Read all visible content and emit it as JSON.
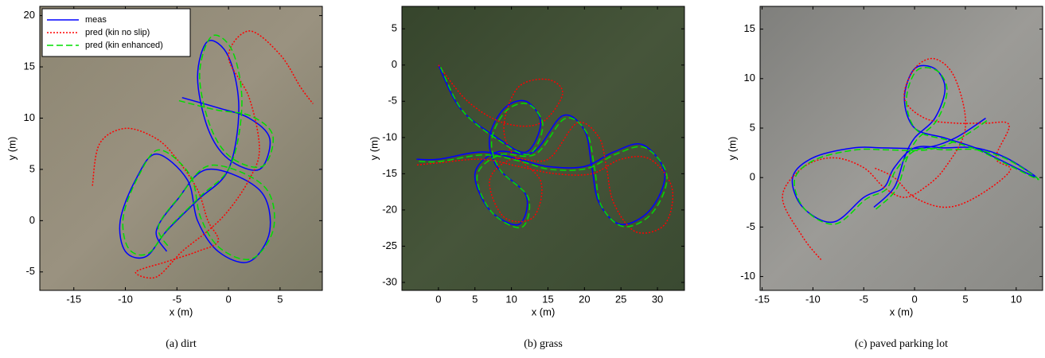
{
  "chart_data": [
    {
      "type": "line",
      "caption": "(a) dirt",
      "xlabel": "x (m)",
      "ylabel": "y (m)",
      "xlim": [
        -18.3,
        9.1
      ],
      "ylim": [
        -6.8,
        20.9
      ],
      "xticks": [
        -15,
        -10,
        -5,
        0,
        5
      ],
      "yticks": [
        -5,
        0,
        5,
        10,
        15,
        20
      ],
      "legend": "upper left",
      "series": [
        {
          "name": "meas",
          "color": "#0000ff",
          "style": "solid",
          "x": [
            -4.5,
            -1,
            2,
            4,
            3,
            0,
            -2,
            -3,
            -2,
            0,
            1,
            0,
            -3,
            -6,
            -8,
            -10,
            -10.5,
            -9,
            -7,
            -4,
            -3,
            -1,
            2,
            4,
            3,
            -2,
            -5,
            -7,
            -6
          ],
          "y": [
            12,
            11,
            10,
            8,
            5,
            6,
            9,
            14,
            17.5,
            16,
            11,
            5,
            2,
            -1,
            -3.5,
            -3,
            0,
            4,
            6.5,
            4,
            0,
            -3,
            -4,
            -1,
            3,
            5,
            2,
            -1,
            -3
          ]
        },
        {
          "name": "pred (kin no slip)",
          "color": "#ff0000",
          "style": "dotted",
          "x": [
            -13.2,
            -12.5,
            -10,
            -7,
            -5,
            -3,
            -2,
            -1,
            -3,
            -6,
            -9,
            -7,
            -4.5,
            -2,
            0,
            2,
            3,
            2,
            0,
            2,
            5,
            7,
            8.2
          ],
          "y": [
            3.4,
            7.5,
            9,
            8,
            6,
            3,
            0,
            -2,
            -3,
            -4,
            -5,
            -5.5,
            -3,
            -1,
            1,
            4,
            7,
            12,
            16,
            18.5,
            16.2,
            13,
            11.4
          ]
        },
        {
          "name": "pred (kin enhanced)",
          "color": "#00dd00",
          "style": "dashed",
          "x": [
            -4.8,
            -1.2,
            2.2,
            4.3,
            3.3,
            0.2,
            -1.8,
            -2.8,
            -1.6,
            0.4,
            1.3,
            0.2,
            -2.8,
            -5.8,
            -7.8,
            -9.7,
            -10.2,
            -8.7,
            -6.7,
            -3.7,
            -2.7,
            -0.8,
            2.3,
            4.4,
            3.4,
            -1.7,
            -4.7,
            -6.8,
            -5.7
          ],
          "y": [
            11.7,
            10.8,
            10.2,
            8.3,
            5.3,
            6.2,
            9.3,
            14.3,
            18,
            16.5,
            11.4,
            5.4,
            2.3,
            -0.7,
            -3.2,
            -2.7,
            0.4,
            4.4,
            6.9,
            4.4,
            0.3,
            -2.7,
            -3.7,
            -0.6,
            3.4,
            5.4,
            2.4,
            -0.6,
            -2.7
          ]
        }
      ]
    },
    {
      "type": "line",
      "caption": "(b) grass",
      "xlabel": "x (m)",
      "ylabel": "y (m)",
      "xlim": [
        -5,
        33.7
      ],
      "ylim": [
        -31.1,
        8.1
      ],
      "xticks": [
        0,
        5,
        10,
        15,
        20,
        25,
        30
      ],
      "yticks": [
        -30,
        -25,
        -20,
        -15,
        -10,
        -5,
        0,
        5
      ],
      "series": [
        {
          "color": "#0000ff",
          "style": "solid",
          "x": [
            0,
            3,
            8,
            12,
            14,
            12,
            9,
            7,
            8,
            12,
            11,
            7,
            5,
            8,
            13,
            17,
            20,
            21,
            22,
            25,
            29,
            31,
            28,
            24,
            20,
            15,
            11,
            6,
            0,
            -3
          ],
          "y": [
            0,
            -6,
            -10,
            -12,
            -8,
            -5,
            -6,
            -10,
            -14,
            -18,
            -22,
            -20,
            -15,
            -12,
            -12,
            -7,
            -9,
            -14,
            -19,
            -22,
            -20,
            -15,
            -11,
            -12,
            -14,
            -14,
            -13,
            -12,
            -13,
            -13
          ]
        },
        {
          "color": "#ff0000",
          "style": "dotted",
          "x": [
            0,
            4,
            9,
            14,
            17,
            15,
            11,
            9,
            10,
            14,
            13,
            9,
            7,
            10,
            15,
            19,
            22,
            23,
            24,
            27,
            31,
            32,
            29,
            25,
            21,
            16,
            11,
            6,
            0,
            -3
          ],
          "y": [
            0,
            -5,
            -8,
            -8,
            -4,
            -2,
            -3,
            -8,
            -12,
            -16,
            -21,
            -21,
            -16,
            -13,
            -13,
            -8,
            -10,
            -14,
            -19,
            -23,
            -22,
            -17,
            -13,
            -13,
            -15,
            -15,
            -14,
            -13,
            -13.5,
            -13.8
          ]
        },
        {
          "color": "#00dd00",
          "style": "dashed",
          "x": [
            0.3,
            3.3,
            8.3,
            12.4,
            14.3,
            12.3,
            9.3,
            7.3,
            8.4,
            12.3,
            11.4,
            7.3,
            5.3,
            8.4,
            13.3,
            17.3,
            20.3,
            21.4,
            22.3,
            25.4,
            29.3,
            31.3,
            28.3,
            24.3,
            20.3,
            15.3,
            11.3,
            6.3,
            0.3,
            -2.7
          ],
          "y": [
            -0.3,
            -6.3,
            -10.4,
            -12.3,
            -8.3,
            -5.4,
            -6.3,
            -10.3,
            -14.4,
            -18.3,
            -22.4,
            -20.3,
            -15.3,
            -12.4,
            -12.3,
            -7.4,
            -9.3,
            -14.3,
            -19.4,
            -22.3,
            -20.4,
            -15.3,
            -11.4,
            -12.3,
            -14.3,
            -14.4,
            -13.3,
            -12.4,
            -13.3,
            -13.3
          ]
        }
      ]
    },
    {
      "type": "line",
      "caption": "(c) paved parking lot",
      "xlabel": "x (m)",
      "ylabel": "y (m)",
      "xlim": [
        -15.2,
        12.6
      ],
      "ylim": [
        -11.4,
        17.3
      ],
      "xticks": [
        -15,
        -10,
        -5,
        0,
        5,
        10
      ],
      "yticks": [
        -10,
        -5,
        0,
        5,
        10,
        15
      ],
      "series": [
        {
          "color": "#0000ff",
          "style": "solid",
          "x": [
            -4,
            -2,
            -1,
            0,
            2,
            3,
            2,
            0,
            -1,
            0,
            3,
            6,
            8,
            12,
            9,
            6,
            3,
            0,
            -2,
            -3,
            -5,
            -8,
            -11,
            -12,
            -10,
            -6,
            -3,
            1,
            4,
            7
          ],
          "y": [
            -3,
            -1,
            2,
            4,
            6,
            9,
            11,
            11,
            8,
            5,
            4,
            3,
            2,
            0,
            2,
            3,
            3,
            3,
            1,
            -1,
            -2,
            -4.5,
            -3,
            0,
            2,
            3,
            3,
            3,
            4,
            6
          ]
        },
        {
          "color": "#ff0000",
          "style": "dotted",
          "x": [
            -9.2,
            -11,
            -13,
            -11,
            -8,
            -5,
            -3,
            -1,
            1,
            3,
            5,
            4,
            2,
            0,
            -1,
            1,
            4,
            7,
            9.3,
            8,
            9.4,
            6,
            3,
            0,
            -2,
            -4
          ],
          "y": [
            -8.3,
            -6,
            -2,
            1,
            2,
            1,
            -1,
            -2,
            -1,
            1,
            5,
            10,
            12,
            11,
            8,
            6,
            5.5,
            5.5,
            5.3,
            2,
            0.7,
            -2,
            -3,
            -2,
            0,
            1
          ]
        },
        {
          "color": "#00dd00",
          "style": "dashed",
          "x": [
            -3.8,
            -1.8,
            -0.8,
            0.2,
            2.2,
            3.2,
            2.2,
            0.2,
            -0.8,
            0.2,
            3.2,
            6.2,
            8.2,
            12.2,
            9.2,
            6.2,
            3.2,
            0.2,
            -1.8,
            -2.8,
            -4.8,
            -7.8,
            -10.8,
            -11.8,
            -9.8,
            -5.8,
            -2.8,
            1.2,
            4.2,
            7.2
          ],
          "y": [
            -3.2,
            -1.2,
            1.8,
            3.8,
            5.8,
            8.8,
            10.8,
            10.8,
            7.8,
            4.8,
            3.8,
            2.8,
            1.8,
            -0.2,
            1.8,
            2.8,
            2.8,
            2.8,
            0.8,
            -1.2,
            -2.2,
            -4.7,
            -3.2,
            -0.2,
            1.8,
            2.8,
            2.8,
            2.8,
            3.8,
            5.8
          ]
        }
      ]
    }
  ]
}
